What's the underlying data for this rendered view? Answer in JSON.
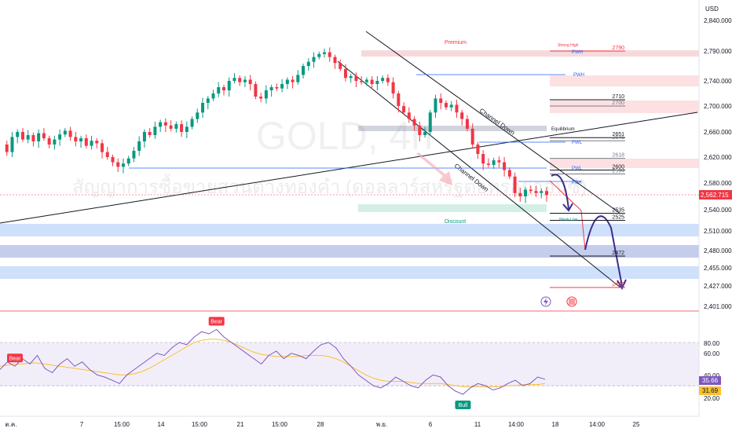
{
  "chart_data": [
    {
      "type": "candlestick",
      "currency": "USD",
      "watermark": {
        "symbol": "GOLD, 4h",
        "subtitle": "สัญญาการซื้อขายสวนต่างทองคำ (ดอลลาร์สหรัฐต่อทรอยออนซ์)"
      },
      "y_ticks": [
        "2,840.000",
        "2,790.000",
        "2,740.000",
        "2,700.000",
        "2,660.000",
        "2,620.000",
        "2,580.000",
        "2,540.000",
        "2,510.000",
        "2,480.000",
        "2,455.000",
        "2,427.000",
        "2,401.000"
      ],
      "current_price": "2,562.715",
      "x_ticks": [
        "ต.ค.",
        "7",
        "15:00",
        "14",
        "15:00",
        "21",
        "15:00",
        "28",
        "พ.ย.",
        "6",
        "11",
        "14:00",
        "18",
        "14:00",
        "25"
      ],
      "price_series": [
        2640,
        2628,
        2652,
        2660,
        2648,
        2655,
        2645,
        2658,
        2650,
        2640,
        2648,
        2656,
        2662,
        2652,
        2645,
        2650,
        2638,
        2646,
        2642,
        2628,
        2620,
        2612,
        2605,
        2610,
        2618,
        2630,
        2645,
        2660,
        2655,
        2668,
        2675,
        2670,
        2665,
        2672,
        2660,
        2668,
        2680,
        2690,
        2705,
        2712,
        2720,
        2730,
        2725,
        2740,
        2745,
        2738,
        2742,
        2735,
        2715,
        2712,
        2725,
        2730,
        2728,
        2735,
        2742,
        2738,
        2750,
        2765,
        2772,
        2780,
        2785,
        2788,
        2780,
        2770,
        2760,
        2745,
        2748,
        2740,
        2738,
        2742,
        2735,
        2740,
        2745,
        2738,
        2720,
        2700,
        2690,
        2680,
        2670,
        2655,
        2660,
        2690,
        2712,
        2705,
        2698,
        2702,
        2690,
        2680,
        2665,
        2640,
        2625,
        2610,
        2608,
        2615,
        2612,
        2600,
        2590,
        2565,
        2560,
        2570,
        2568,
        2565,
        2568,
        2562
      ],
      "levels": [
        {
          "label": "2790",
          "value": 2790,
          "color": "#f23645"
        },
        {
          "label": "2710",
          "value": 2710,
          "color": "#131722"
        },
        {
          "label": "2700",
          "value": 2700,
          "color": "#787b86"
        },
        {
          "label": "2651",
          "value": 2651,
          "color": "#131722"
        },
        {
          "label": "2646",
          "value": 2646,
          "color": "#787b86"
        },
        {
          "label": "2618",
          "value": 2618,
          "color": "#787b86"
        },
        {
          "label": "2600",
          "value": 2600,
          "color": "#131722"
        },
        {
          "label": "2594",
          "value": 2594,
          "color": "#787b86"
        },
        {
          "label": "2535",
          "value": 2535,
          "color": "#131722"
        },
        {
          "label": "2525",
          "value": 2525,
          "color": "#131722"
        },
        {
          "label": "2472",
          "value": 2472,
          "color": "#131722"
        },
        {
          "label": "2425",
          "value": 2425,
          "color": "#f23645"
        }
      ],
      "annotations": {
        "premium": "Premium",
        "strong_high": "Strong High",
        "pwh_1": "PWH",
        "pwh_2": "PWH",
        "equilibrium": "Equilibrium",
        "pwl": "PWL",
        "pwl_2": "PWL",
        "pdh": "PDH",
        "discount": "Discount",
        "weak_low": "Weak Low",
        "channel_upper": "Channel Down",
        "channel_lower": "Channel Down"
      }
    },
    {
      "type": "line",
      "indicator": "RSI",
      "y_ticks": [
        "80.00",
        "60.00",
        "40.00",
        "20.00"
      ],
      "rsi_value": "35.66",
      "ma_value": "31.69",
      "rsi_series": [
        45,
        52,
        48,
        55,
        50,
        58,
        46,
        42,
        50,
        55,
        48,
        52,
        45,
        40,
        38,
        35,
        32,
        40,
        45,
        50,
        55,
        60,
        58,
        65,
        70,
        68,
        75,
        80,
        78,
        82,
        75,
        70,
        65,
        60,
        55,
        50,
        58,
        62,
        55,
        60,
        58,
        55,
        62,
        68,
        70,
        65,
        55,
        48,
        40,
        35,
        30,
        28,
        32,
        38,
        34,
        30,
        28,
        35,
        40,
        38,
        30,
        25,
        22,
        28,
        32,
        30,
        26,
        28,
        32,
        35,
        30,
        32,
        38,
        36
      ],
      "ma_series": [
        48,
        49,
        50,
        50,
        51,
        51,
        50,
        49,
        48,
        47,
        46,
        45,
        44,
        43,
        42,
        41,
        40,
        40,
        41,
        43,
        46,
        50,
        54,
        58,
        62,
        66,
        70,
        72,
        73,
        73,
        72,
        70,
        67,
        64,
        61,
        59,
        58,
        57,
        57,
        57,
        57,
        58,
        58,
        58,
        57,
        55,
        52,
        48,
        44,
        40,
        37,
        35,
        34,
        34,
        34,
        33,
        32,
        32,
        32,
        32,
        31,
        30,
        29,
        29,
        29,
        29,
        29,
        29,
        30,
        30,
        31,
        31,
        31,
        32
      ],
      "signals": [
        {
          "label": "Bear",
          "index": 2,
          "color": "#f23645"
        },
        {
          "label": "Bear",
          "index": 29,
          "color": "#f23645"
        },
        {
          "label": "Bull",
          "index": 62,
          "color": "#089981"
        }
      ]
    }
  ]
}
